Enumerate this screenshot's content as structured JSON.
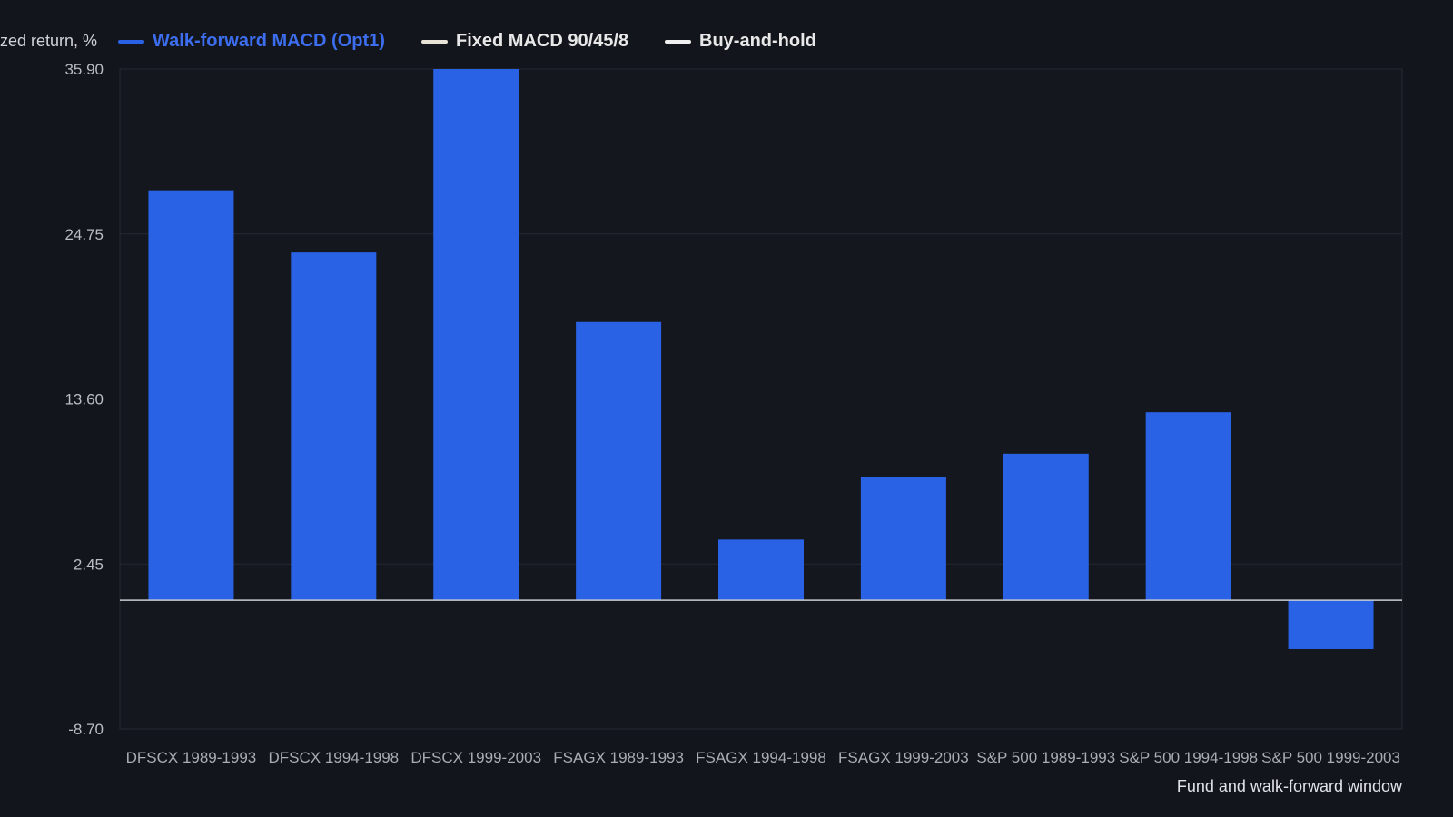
{
  "legend": [
    {
      "label": "Walk-forward MACD (Opt1)",
      "color": "#2962e4",
      "text_color": "#3d6ef0"
    },
    {
      "label": "Fixed MACD 90/45/8",
      "color": "#e8e3d6",
      "text_color": "#e8e8e8"
    },
    {
      "label": "Buy-and-hold",
      "color": "#f0f0f0",
      "text_color": "#e8e8e8"
    }
  ],
  "chart_data": {
    "type": "bar",
    "title": "",
    "ylabel": "zed return, %",
    "xlabel": "Fund and walk-forward window",
    "ylim": [
      -8.7,
      35.9
    ],
    "yticks": [
      "35.90",
      "24.75",
      "13.60",
      "2.45",
      "-8.70"
    ],
    "categories": [
      "DFSCX 1989-1993",
      "DFSCX 1994-1998",
      "DFSCX 1999-2003",
      "FSAGX 1989-1993",
      "FSAGX 1994-1998",
      "FSAGX 1999-2003",
      "S&P 500 1989-1993",
      "S&P 500 1994-1998",
      "S&P 500 1999-2003"
    ],
    "series": [
      {
        "name": "Walk-forward MACD (Opt1)",
        "color": "#2962e4",
        "values": [
          27.7,
          23.5,
          35.9,
          18.8,
          4.1,
          8.3,
          9.9,
          12.7,
          -3.3
        ]
      }
    ],
    "grid": true,
    "legend_position": "top-left"
  }
}
